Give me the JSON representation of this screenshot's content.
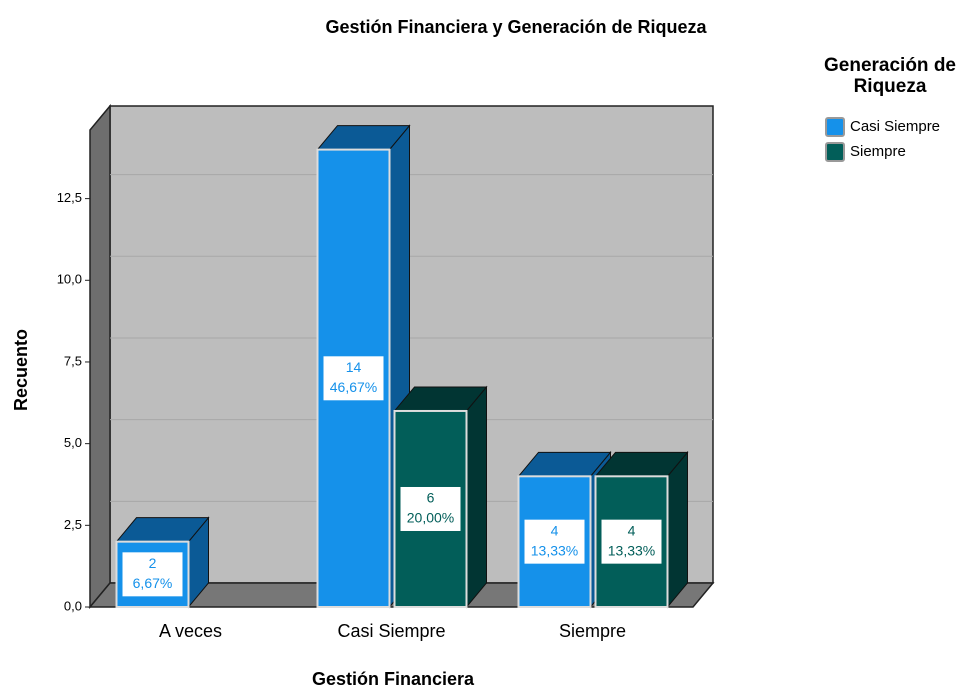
{
  "chart_data": {
    "type": "bar3d",
    "title": "Gestión Financiera y Generación de Riqueza",
    "x_label": "Gestión Financiera",
    "y_label": "Recuento",
    "legend_title": "Generación de Riqueza",
    "categories": [
      "A veces",
      "Casi Siempre",
      "Siempre"
    ],
    "series": [
      {
        "name": "Casi Siempre",
        "color": "#1591ea",
        "side_color": "#0b5a96",
        "values": [
          2,
          14,
          4
        ],
        "percents": [
          6.67,
          46.67,
          13.33
        ],
        "percent_labels": [
          "6,67%",
          "46,67%",
          "13,33%"
        ]
      },
      {
        "name": "Siempre",
        "color": "#025e59",
        "side_color": "#013533",
        "values": [
          null,
          6,
          4
        ],
        "percents": [
          null,
          20.0,
          13.33
        ],
        "percent_labels": [
          null,
          "20,00%",
          "13,33%"
        ]
      }
    ],
    "ylim": [
      0,
      14.6
    ],
    "yticks": [
      {
        "value": 0,
        "label": "0,0"
      },
      {
        "value": 2.5,
        "label": "2,5"
      },
      {
        "value": 5,
        "label": "5,0"
      },
      {
        "value": 7.5,
        "label": "7,5"
      },
      {
        "value": 10,
        "label": "10,0"
      },
      {
        "value": 12.5,
        "label": "12,5"
      }
    ],
    "grid": true
  }
}
